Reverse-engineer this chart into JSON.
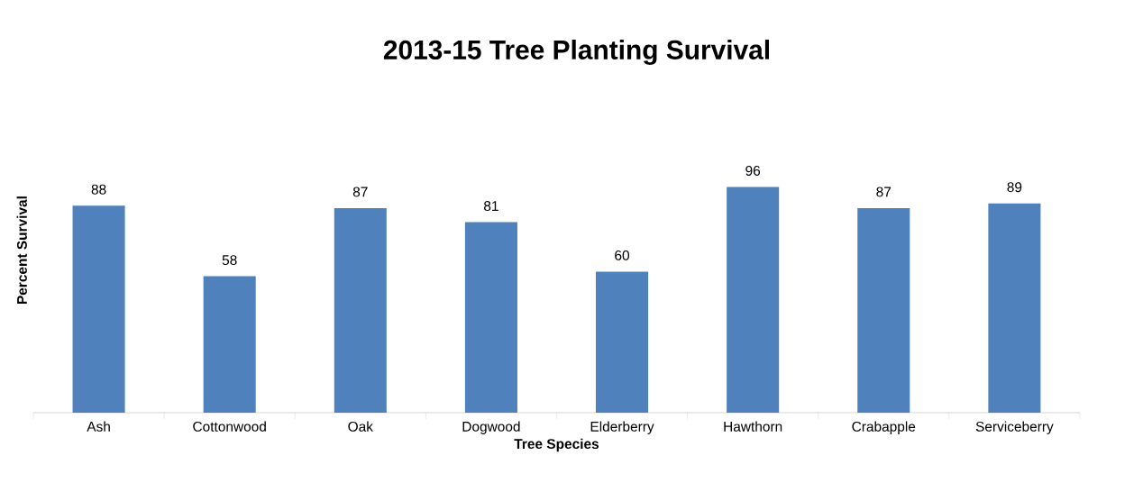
{
  "chart_data": {
    "type": "bar",
    "title": "2013-15 Tree Planting Survival",
    "xlabel": "Tree Species",
    "ylabel": "Percent Survival",
    "categories": [
      "Ash",
      "Cottonwood",
      "Oak",
      "Dogwood",
      "Elderberry",
      "Hawthorn",
      "Crabapple",
      "Serviceberry"
    ],
    "values": [
      88,
      58,
      87,
      81,
      60,
      96,
      87,
      89
    ],
    "color": "#4f81bd",
    "data_labels": true
  }
}
